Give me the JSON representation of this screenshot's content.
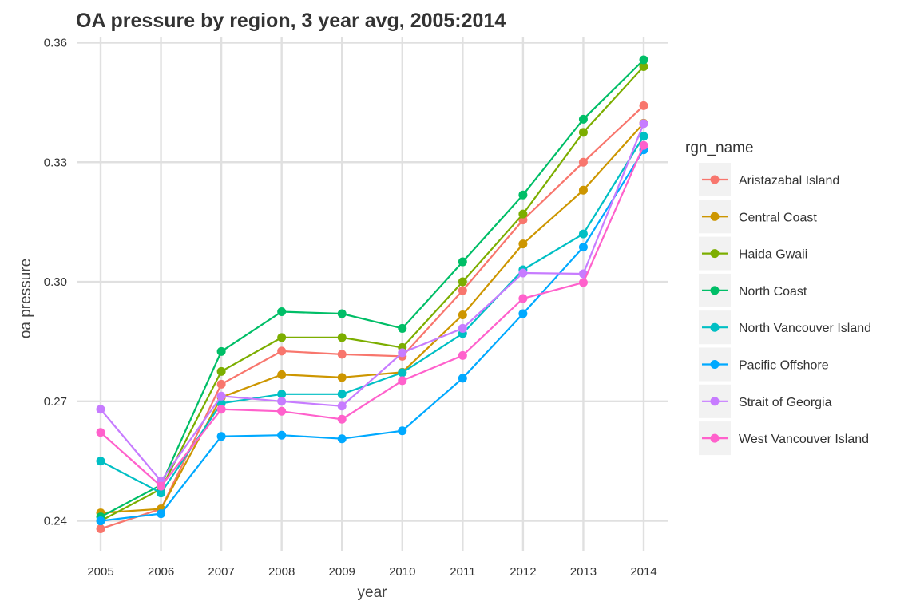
{
  "chart_data": {
    "type": "line",
    "title": "OA pressure by region, 3 year avg, 2005:2014",
    "xlabel": "year",
    "ylabel": "oa pressure",
    "x": [
      2005,
      2006,
      2007,
      2008,
      2009,
      2010,
      2011,
      2012,
      2013,
      2014
    ],
    "x_tick_labels": [
      "2005",
      "2006",
      "2007",
      "2008",
      "2009",
      "2010",
      "2011",
      "2012",
      "2013",
      "2014"
    ],
    "ylim": [
      0.2325,
      0.3615
    ],
    "y_ticks": [
      0.24,
      0.27,
      0.3,
      0.33,
      0.36
    ],
    "y_tick_labels": [
      "0.24",
      "0.27",
      "0.30",
      "0.33",
      "0.36"
    ],
    "grid": true,
    "legend": {
      "title": "rgn_name",
      "position": "right"
    },
    "series": [
      {
        "name": "Aristazabal Island",
        "color": "#F8766D",
        "values": [
          0.238,
          0.243,
          0.2743,
          0.2826,
          0.2818,
          0.2813,
          0.2978,
          0.3155,
          0.33,
          0.3442
        ]
      },
      {
        "name": "Central Coast",
        "color": "#CD9600",
        "values": [
          0.242,
          0.243,
          0.271,
          0.2767,
          0.276,
          0.2773,
          0.2917,
          0.3095,
          0.323,
          0.3398
        ]
      },
      {
        "name": "Haida Gwaii",
        "color": "#7CAE00",
        "values": [
          0.24,
          0.248,
          0.2775,
          0.286,
          0.286,
          0.2835,
          0.3,
          0.317,
          0.3375,
          0.354
        ]
      },
      {
        "name": "North Coast",
        "color": "#00BE67",
        "values": [
          0.241,
          0.249,
          0.2825,
          0.2925,
          0.292,
          0.2883,
          0.305,
          0.3218,
          0.3408,
          0.3557
        ]
      },
      {
        "name": "North Vancouver Island",
        "color": "#00BFC4",
        "values": [
          0.255,
          0.247,
          0.2695,
          0.2718,
          0.2718,
          0.2772,
          0.287,
          0.303,
          0.312,
          0.3365
        ]
      },
      {
        "name": "Pacific Offshore",
        "color": "#00A9FF",
        "values": [
          0.24,
          0.2418,
          0.2612,
          0.2615,
          0.2606,
          0.2626,
          0.2758,
          0.292,
          0.3087,
          0.3331
        ]
      },
      {
        "name": "Strait of Georgia",
        "color": "#C77CFF",
        "values": [
          0.268,
          0.25,
          0.2713,
          0.27,
          0.2688,
          0.2822,
          0.2883,
          0.3022,
          0.302,
          0.3397
        ]
      },
      {
        "name": "West Vancouver Island",
        "color": "#FF61CC",
        "values": [
          0.2622,
          0.2487,
          0.268,
          0.2675,
          0.2655,
          0.2752,
          0.2815,
          0.2958,
          0.2998,
          0.3342
        ]
      }
    ]
  }
}
